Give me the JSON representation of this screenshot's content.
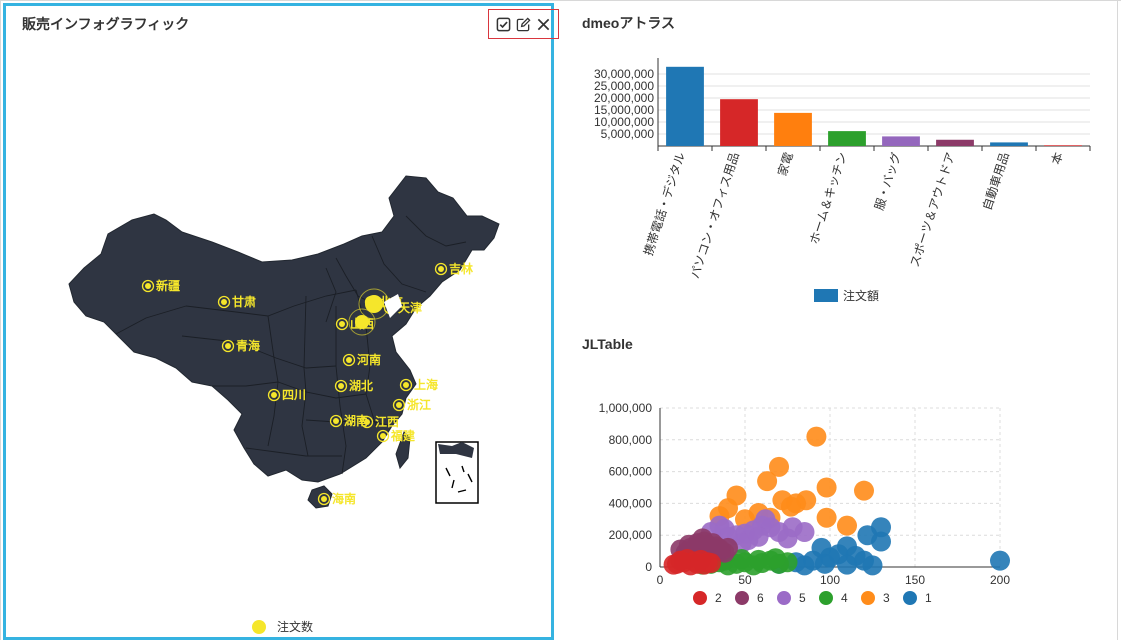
{
  "map_panel": {
    "title": "販売インフォグラフィック",
    "toolbar": {
      "check_icon": "check-square-icon",
      "edit_icon": "edit-icon",
      "close_icon": "close-icon"
    },
    "legend_label": "注文数",
    "marker_color": "#f5e62b",
    "map_fill": "#2f3542",
    "provinces": [
      "新疆",
      "甘肃",
      "青海",
      "吉林",
      "北京",
      "天津",
      "山西",
      "河南",
      "湖北",
      "上海",
      "四川",
      "浙江",
      "湖南",
      "江西",
      "福建",
      "海南"
    ]
  },
  "bar_panel": {
    "title": "dmeoアトラス",
    "legend_label": "注文額",
    "chart_data": {
      "type": "bar",
      "categories": [
        "携帯電話・デジタル",
        "パソコン・オフィス用品",
        "家電",
        "ホーム＆キッチン",
        "服・バッグ",
        "スポーツ＆アウトドア",
        "自動車用品",
        "本"
      ],
      "values": [
        33000000,
        19500000,
        13800000,
        6200000,
        4000000,
        2600000,
        1500000,
        300000
      ],
      "colors": [
        "#1f77b4",
        "#d62728",
        "#ff7f0e",
        "#2ca02c",
        "#9467bd",
        "#8c3a68",
        "#1f77b4",
        "#d62728"
      ],
      "yticks": [
        "5,000,000",
        "10,000,000",
        "15,000,000",
        "20,000,000",
        "25,000,000",
        "30,000,000"
      ],
      "ylim": [
        0,
        35000000
      ],
      "series": [
        {
          "name": "注文額"
        }
      ]
    }
  },
  "scatter_panel": {
    "title": "JLTable",
    "chart_data": {
      "type": "scatter",
      "xlim": [
        0,
        200
      ],
      "ylim": [
        0,
        1000000
      ],
      "xticks": [
        "0",
        "50",
        "100",
        "150",
        "200"
      ],
      "yticks": [
        "0",
        "200,000",
        "400,000",
        "600,000",
        "800,000",
        "1,000,000"
      ],
      "legend": [
        {
          "name": "2",
          "color": "#d62728"
        },
        {
          "name": "6",
          "color": "#8c3a68"
        },
        {
          "name": "5",
          "color": "#9b6bc7"
        },
        {
          "name": "4",
          "color": "#2ca02c"
        },
        {
          "name": "3",
          "color": "#ff8c1a"
        },
        {
          "name": "1",
          "color": "#1f77b4"
        }
      ],
      "series": [
        {
          "name": "3",
          "color": "#ff8c1a",
          "points": [
            [
              92,
              820000
            ],
            [
              70,
              630000
            ],
            [
              98,
              500000
            ],
            [
              120,
              480000
            ],
            [
              45,
              450000
            ],
            [
              63,
              540000
            ],
            [
              72,
              420000
            ],
            [
              86,
              420000
            ],
            [
              80,
              400000
            ],
            [
              77,
              380000
            ],
            [
              40,
              370000
            ],
            [
              58,
              340000
            ],
            [
              65,
              310000
            ],
            [
              98,
              310000
            ],
            [
              110,
              260000
            ],
            [
              35,
              320000
            ],
            [
              50,
              300000
            ]
          ]
        },
        {
          "name": "1",
          "color": "#1f77b4",
          "points": [
            [
              200,
              40000
            ],
            [
              130,
              250000
            ],
            [
              130,
              160000
            ],
            [
              122,
              200000
            ],
            [
              110,
              130000
            ],
            [
              95,
              120000
            ],
            [
              105,
              80000
            ],
            [
              100,
              60000
            ],
            [
              90,
              40000
            ],
            [
              80,
              30000
            ],
            [
              120,
              40000
            ],
            [
              125,
              10000
            ],
            [
              85,
              10000
            ],
            [
              70,
              20000
            ],
            [
              115,
              70000
            ],
            [
              97,
              20000
            ],
            [
              110,
              15000
            ]
          ]
        },
        {
          "name": "5",
          "color": "#9b6bc7",
          "points": [
            [
              60,
              260000
            ],
            [
              65,
              250000
            ],
            [
              55,
              230000
            ],
            [
              50,
              210000
            ],
            [
              45,
              200000
            ],
            [
              40,
              190000
            ],
            [
              35,
              260000
            ],
            [
              30,
              220000
            ],
            [
              70,
              220000
            ],
            [
              75,
              180000
            ],
            [
              85,
              220000
            ],
            [
              62,
              300000
            ],
            [
              52,
              170000
            ],
            [
              48,
              150000
            ],
            [
              38,
              240000
            ],
            [
              58,
              190000
            ],
            [
              78,
              250000
            ]
          ]
        },
        {
          "name": "4",
          "color": "#2ca02c",
          "points": [
            [
              30,
              20000
            ],
            [
              35,
              30000
            ],
            [
              40,
              10000
            ],
            [
              45,
              20000
            ],
            [
              50,
              30000
            ],
            [
              55,
              10000
            ],
            [
              60,
              25000
            ],
            [
              65,
              40000
            ],
            [
              70,
              20000
            ],
            [
              75,
              30000
            ],
            [
              25,
              15000
            ],
            [
              38,
              40000
            ],
            [
              48,
              50000
            ],
            [
              58,
              45000
            ],
            [
              68,
              55000
            ]
          ]
        },
        {
          "name": "6",
          "color": "#8c3a68",
          "points": [
            [
              15,
              90000
            ],
            [
              18,
              120000
            ],
            [
              22,
              150000
            ],
            [
              25,
              180000
            ],
            [
              28,
              140000
            ],
            [
              30,
              110000
            ],
            [
              33,
              130000
            ],
            [
              36,
              100000
            ],
            [
              40,
              120000
            ],
            [
              20,
              100000
            ],
            [
              12,
              110000
            ],
            [
              26,
              160000
            ],
            [
              31,
              150000
            ],
            [
              38,
              90000
            ],
            [
              24,
              120000
            ],
            [
              17,
              140000
            ],
            [
              35,
              115000
            ]
          ]
        },
        {
          "name": "2",
          "color": "#d62728",
          "points": [
            [
              10,
              20000
            ],
            [
              14,
              30000
            ],
            [
              18,
              10000
            ],
            [
              22,
              20000
            ],
            [
              26,
              15000
            ],
            [
              30,
              25000
            ],
            [
              12,
              40000
            ],
            [
              16,
              50000
            ],
            [
              20,
              35000
            ],
            [
              24,
              45000
            ],
            [
              8,
              15000
            ],
            [
              28,
              30000
            ]
          ]
        }
      ]
    }
  }
}
